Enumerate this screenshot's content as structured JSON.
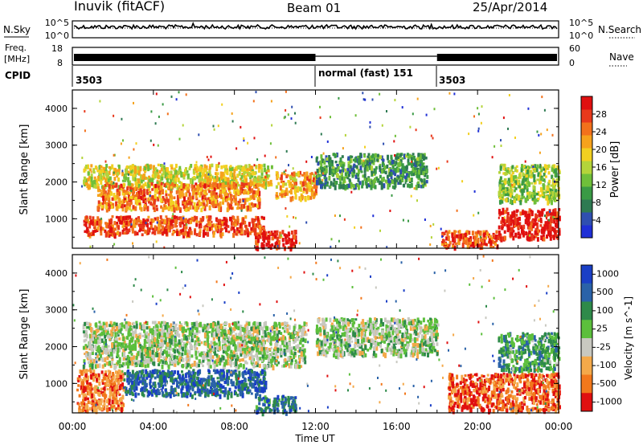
{
  "header": {
    "station": "Inuvik (fitACF)",
    "beam": "Beam 01",
    "date": "25/Apr/2014"
  },
  "noise_panel": {
    "left_label": "N.Sky",
    "left_ticks": [
      "10^5",
      "10^0"
    ],
    "right_label": "N.Search",
    "right_ticks": [
      "10^5",
      "10^0"
    ]
  },
  "freq_panel": {
    "left_label_1": "Freq.",
    "left_label_2": "[MHz]",
    "left_ticks": [
      "18",
      "8"
    ],
    "right_label": "Nave",
    "right_ticks": [
      "60",
      "0"
    ]
  },
  "cpid_panel": {
    "label": "CPID",
    "segments": [
      {
        "start_hour": 0,
        "text": "3503"
      },
      {
        "start_hour": 12,
        "text": "normal (fast) 151"
      },
      {
        "start_hour": 18,
        "text": "3503"
      }
    ]
  },
  "xaxis": {
    "label": "Time UT",
    "ticks": [
      "00:00",
      "04:00",
      "08:00",
      "12:00",
      "16:00",
      "20:00",
      "00:00"
    ]
  },
  "chart_data": [
    {
      "type": "heatmap",
      "name": "power",
      "ylabel": "Slant Range [km]",
      "ylim": [
        200,
        4500
      ],
      "yticks": [
        "1000",
        "2000",
        "3000",
        "4000"
      ],
      "xlim_hours": [
        0,
        24
      ],
      "colorbar_label": "Power [dB]",
      "colorbar_ticks": [
        "4",
        "8",
        "12",
        "16",
        "20",
        "24",
        "28"
      ],
      "colors": [
        "#1f2fd6",
        "#2f4fb0",
        "#2e7a52",
        "#3a9a45",
        "#6fbf3a",
        "#b4d43a",
        "#f2d020",
        "#f6a21c",
        "#f2711c",
        "#e8391c",
        "#e01010"
      ],
      "bands": [
        {
          "x0": 0.5,
          "x1": 9.8,
          "y0": 1900,
          "y1": 2500,
          "level": 0.55
        },
        {
          "x0": 1.2,
          "x1": 9.2,
          "y0": 1300,
          "y1": 2000,
          "level": 0.75
        },
        {
          "x0": 0.5,
          "x1": 9.5,
          "y0": 600,
          "y1": 1100,
          "level": 0.85
        },
        {
          "x0": 9.0,
          "x1": 11.0,
          "y0": 250,
          "y1": 700,
          "level": 0.9
        },
        {
          "x0": 10.0,
          "x1": 12.0,
          "y0": 1600,
          "y1": 2300,
          "level": 0.7
        },
        {
          "x0": 12.0,
          "x1": 17.5,
          "y0": 1900,
          "y1": 2800,
          "level": 0.3
        },
        {
          "x0": 18.2,
          "x1": 21.0,
          "y0": 250,
          "y1": 700,
          "level": 0.85
        },
        {
          "x0": 21.0,
          "x1": 24.0,
          "y0": 500,
          "y1": 1300,
          "level": 0.95
        },
        {
          "x0": 21.0,
          "x1": 24.0,
          "y0": 1500,
          "y1": 2500,
          "level": 0.45
        }
      ]
    },
    {
      "type": "heatmap",
      "name": "velocity",
      "ylabel": "Slant Range [km]",
      "ylim": [
        200,
        4500
      ],
      "yticks": [
        "1000",
        "2000",
        "3000",
        "4000"
      ],
      "xlim_hours": [
        0,
        24
      ],
      "colorbar_label": "Velocity [m s^-1]",
      "colorbar_ticks": [
        "1000",
        "500",
        "100",
        "25",
        "-25",
        "-100",
        "-500",
        "-1000"
      ],
      "colors": [
        "#1a3fc6",
        "#2a62a8",
        "#2e8a4a",
        "#5cbf3c",
        "#c8c8c0",
        "#f4a94a",
        "#f2781c",
        "#e01010"
      ],
      "bands": [
        {
          "x0": 0.5,
          "x1": 11.5,
          "y0": 1500,
          "y1": 2700,
          "level": 0.5
        },
        {
          "x0": 12.0,
          "x1": 18.0,
          "y0": 1800,
          "y1": 2800,
          "level": 0.5
        },
        {
          "x0": 2.5,
          "x1": 9.5,
          "y0": 700,
          "y1": 1400,
          "level": 0.2
        },
        {
          "x0": 0.2,
          "x1": 2.5,
          "y0": 300,
          "y1": 1400,
          "level": 0.8
        },
        {
          "x0": 9.0,
          "x1": 11.0,
          "y0": 250,
          "y1": 700,
          "level": 0.25
        },
        {
          "x0": 18.5,
          "x1": 24.0,
          "y0": 300,
          "y1": 1300,
          "level": 0.85
        },
        {
          "x0": 21.0,
          "x1": 24.0,
          "y0": 1400,
          "y1": 2400,
          "level": 0.35
        }
      ]
    }
  ]
}
